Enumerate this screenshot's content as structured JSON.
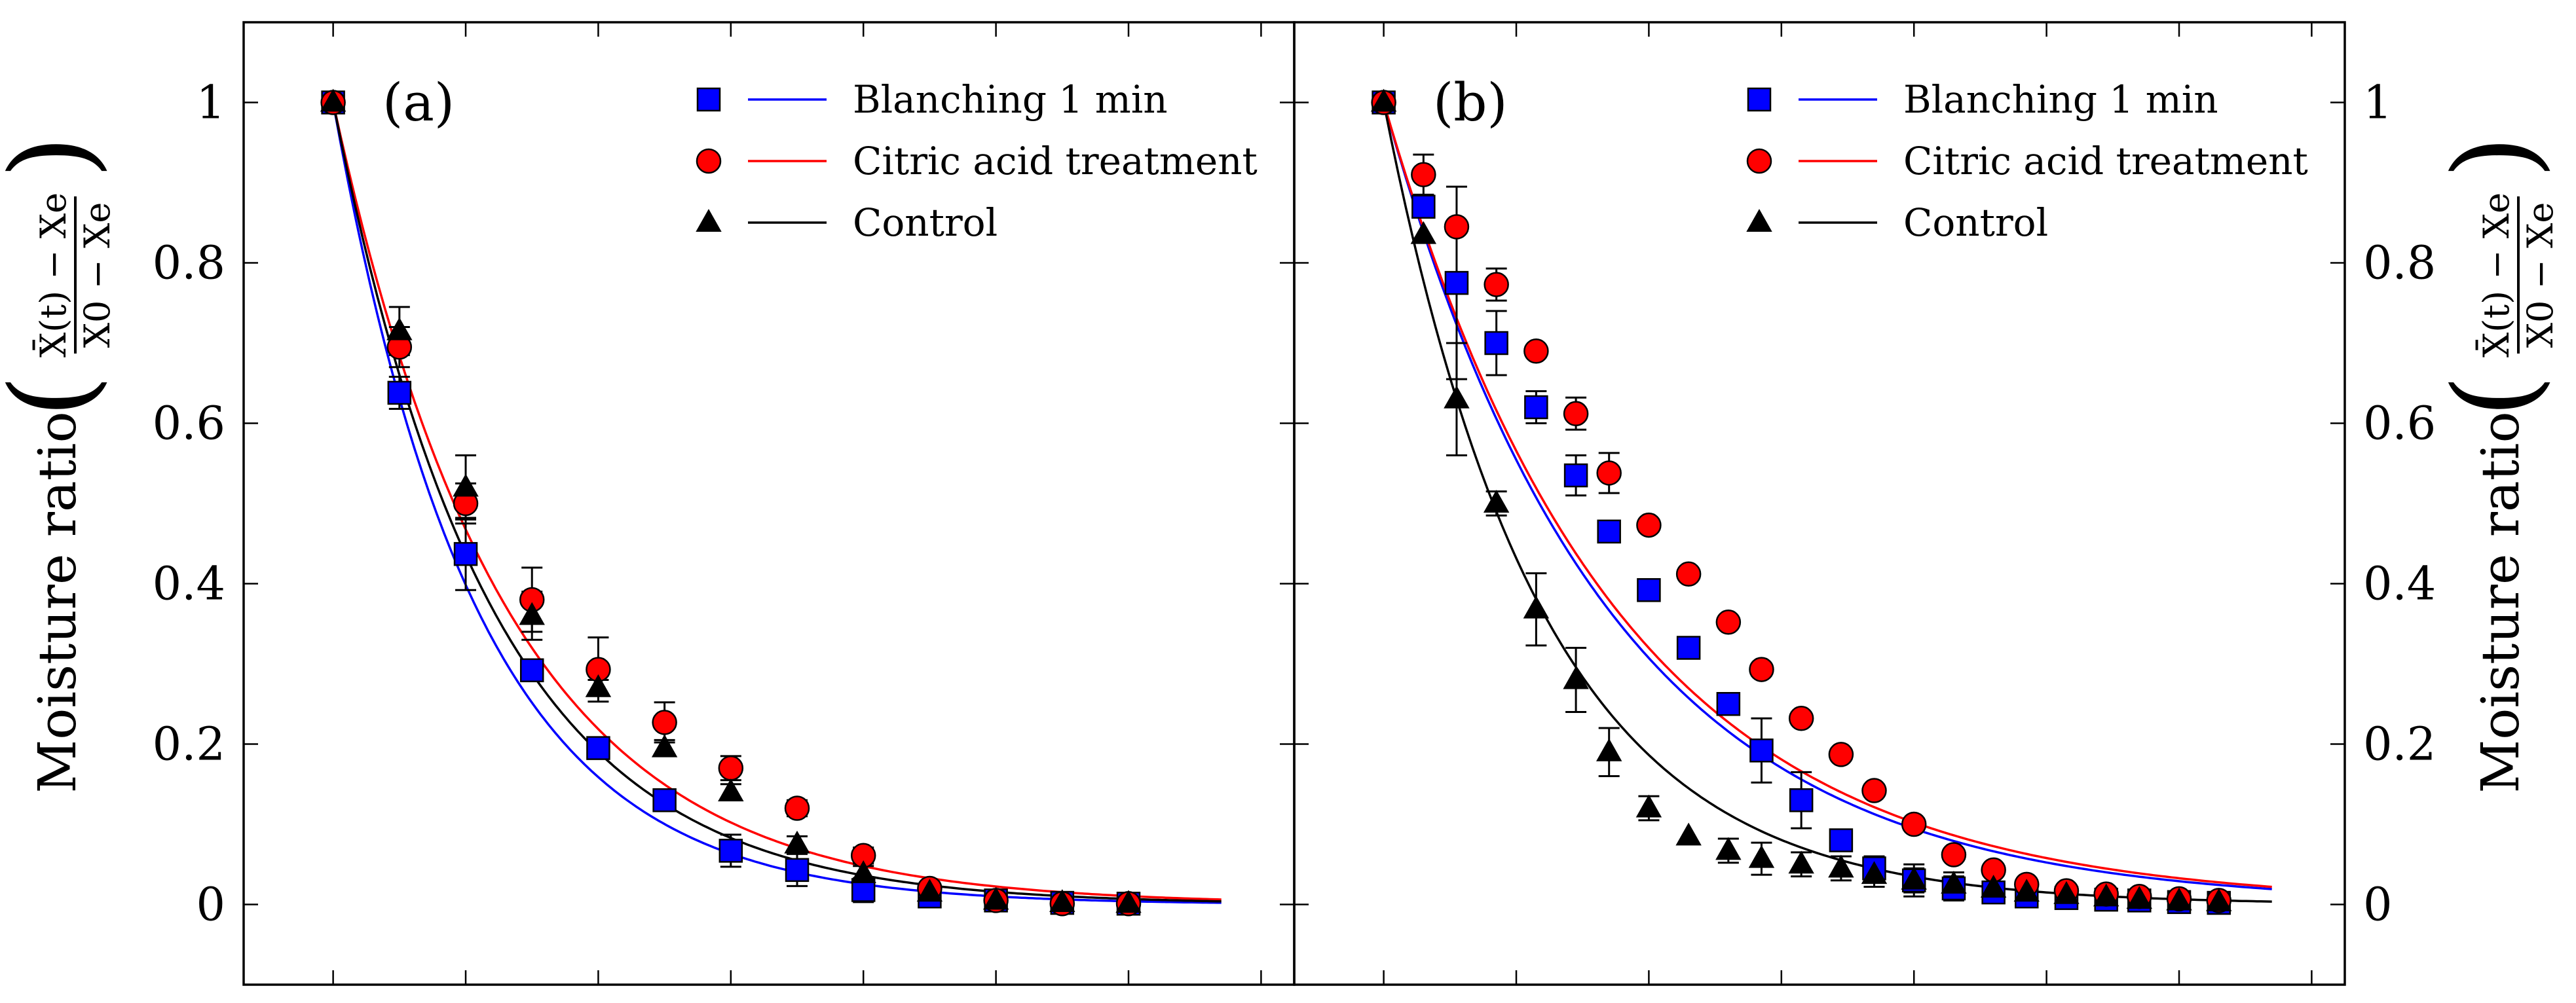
{
  "ylabel_left": {
    "prefix": "Moisture ratio",
    "num": "X̄(t) − Xe",
    "den": "X0 − Xe"
  },
  "ylabel_right": {
    "prefix": "Moisture ratio",
    "num": "X̄(t) − Xe",
    "den": "X0 − Xe"
  },
  "chart_data": [
    {
      "type": "scatter",
      "panel_label": "(a)",
      "y_tick_labels": [
        "0",
        "0.2",
        "0.4",
        "0.6",
        "0.8",
        "1"
      ],
      "y_tick_values": [
        0,
        0.2,
        0.4,
        0.6,
        0.8,
        1
      ],
      "x_tick_labels": [],
      "ylim": [
        -0.1,
        1.1
      ],
      "xlim": [
        -1.35,
        14.5
      ],
      "legend_position": "top-right",
      "legend": [
        {
          "label": "Blanching 1 min",
          "marker": "square",
          "color": "#0000ff"
        },
        {
          "label": "Citric acid treatment",
          "marker": "circle",
          "color": "#ff0000"
        },
        {
          "label": "Control",
          "marker": "triangle",
          "color": "#000000"
        }
      ],
      "series": [
        {
          "name": "Blanching 1 min",
          "color": "#0000ff",
          "marker": "square",
          "k": 0.46,
          "x": [
            0,
            1,
            2,
            3,
            4,
            5,
            6,
            7,
            8,
            9,
            10,
            11,
            12
          ],
          "y": [
            1.0,
            0.638,
            0.437,
            0.292,
            0.195,
            0.13,
            0.067,
            0.043,
            0.018,
            0.01,
            0.005,
            0.002,
            0.001
          ],
          "err": [
            0,
            0.02,
            0.045,
            0.012,
            0.012,
            0.01,
            0.02,
            0.02,
            0.015,
            0.005,
            0.005,
            0.003,
            0.003
          ]
        },
        {
          "name": "Citric acid treatment",
          "color": "#ff0000",
          "marker": "circle",
          "k": 0.38,
          "x": [
            0,
            1,
            2,
            3,
            4,
            5,
            6,
            7,
            8,
            9,
            10,
            11,
            12
          ],
          "y": [
            1.0,
            0.695,
            0.5,
            0.38,
            0.293,
            0.227,
            0.17,
            0.12,
            0.061,
            0.02,
            0.005,
            0.001,
            0.001
          ],
          "err": [
            0,
            0.025,
            0.025,
            0.04,
            0.04,
            0.025,
            0.015,
            0.01,
            0.01,
            0.005,
            0.005,
            0.003,
            0.003
          ]
        },
        {
          "name": "Control",
          "color": "#000000",
          "marker": "triangle",
          "k": 0.415,
          "x": [
            0,
            1,
            2,
            3,
            4,
            5,
            6,
            7,
            8,
            9,
            10,
            11,
            12
          ],
          "y": [
            1.0,
            0.715,
            0.52,
            0.36,
            0.27,
            0.195,
            0.14,
            0.075,
            0.038,
            0.015,
            0.005,
            0.002,
            0.001
          ],
          "err": [
            0,
            0.03,
            0.04,
            0.03,
            0.01,
            0.01,
            0.01,
            0.01,
            0.01,
            0.005,
            0.005,
            0.003,
            0.003
          ]
        }
      ]
    },
    {
      "type": "scatter",
      "panel_label": "(b)",
      "y_tick_labels": [
        "0",
        "0.2",
        "0.4",
        "0.6",
        "0.8",
        "1"
      ],
      "y_tick_values": [
        0,
        0.2,
        0.4,
        0.6,
        0.8,
        1
      ],
      "x_tick_labels": [],
      "ylim": [
        -0.1,
        1.1
      ],
      "xlim": [
        -1.35,
        14.5
      ],
      "legend_position": "top-right",
      "legend": [
        {
          "label": "Blanching 1 min",
          "marker": "square",
          "color": "#0000ff"
        },
        {
          "label": "Citric acid treatment",
          "marker": "circle",
          "color": "#ff0000"
        },
        {
          "label": "Control",
          "marker": "triangle",
          "color": "#000000"
        }
      ],
      "series": [
        {
          "name": "Blanching 1 min",
          "color": "#0000ff",
          "marker": "square",
          "k": 0.295,
          "x": [
            0,
            0.6,
            1.1,
            1.7,
            2.3,
            2.9,
            3.4,
            4.0,
            4.6,
            5.2,
            5.7,
            6.3,
            6.9,
            7.4,
            8.0,
            8.6,
            9.2,
            9.7,
            10.3,
            10.9,
            11.4,
            12.0,
            12.6
          ],
          "y": [
            1.0,
            0.87,
            0.775,
            0.7,
            0.62,
            0.535,
            0.465,
            0.392,
            0.32,
            0.25,
            0.192,
            0.13,
            0.08,
            0.045,
            0.03,
            0.02,
            0.015,
            0.01,
            0.008,
            0.006,
            0.005,
            0.003,
            0.002
          ],
          "err": [
            0,
            0.0,
            0.12,
            0.04,
            0.02,
            0.025,
            0.0,
            0.0,
            0.0,
            0.0,
            0.04,
            0.035,
            0.0,
            0.015,
            0.02,
            0.015,
            0.0,
            0.0,
            0.0,
            0.0,
            0.0,
            0.0,
            0.0
          ]
        },
        {
          "name": "Citric acid treatment",
          "color": "#ff0000",
          "marker": "circle",
          "k": 0.285,
          "x": [
            0,
            0.6,
            1.1,
            1.7,
            2.3,
            2.9,
            3.4,
            4.0,
            4.6,
            5.2,
            5.7,
            6.3,
            6.9,
            7.4,
            8.0,
            8.6,
            9.2,
            9.7,
            10.3,
            10.9,
            11.4,
            12.0,
            12.6
          ],
          "y": [
            1.0,
            0.91,
            0.845,
            0.773,
            0.69,
            0.612,
            0.538,
            0.473,
            0.412,
            0.352,
            0.293,
            0.232,
            0.187,
            0.142,
            0.1,
            0.062,
            0.043,
            0.025,
            0.017,
            0.013,
            0.01,
            0.007,
            0.005
          ],
          "err": [
            0,
            0.025,
            0.0,
            0.02,
            0.0,
            0.02,
            0.025,
            0.0,
            0.0,
            0.0,
            0.0,
            0.0,
            0.0,
            0.0,
            0.0,
            0.0,
            0.0,
            0.0,
            0.0,
            0.0,
            0.0,
            0.0,
            0.0
          ]
        },
        {
          "name": "Control",
          "color": "#000000",
          "marker": "triangle",
          "k": 0.42,
          "x": [
            0,
            0.6,
            1.1,
            1.7,
            2.3,
            2.9,
            3.4,
            4.0,
            4.6,
            5.2,
            5.7,
            6.3,
            6.9,
            7.4,
            8.0,
            8.6,
            9.2,
            9.7,
            10.3,
            10.9,
            11.4,
            12.0,
            12.6
          ],
          "y": [
            1.0,
            0.835,
            0.63,
            0.5,
            0.368,
            0.28,
            0.19,
            0.12,
            0.085,
            0.067,
            0.057,
            0.05,
            0.045,
            0.037,
            0.03,
            0.025,
            0.02,
            0.015,
            0.012,
            0.009,
            0.006,
            0.004,
            0.003
          ],
          "err": [
            0,
            0.0,
            0.07,
            0.015,
            0.045,
            0.04,
            0.03,
            0.015,
            0.0,
            0.015,
            0.02,
            0.015,
            0.015,
            0.015,
            0.015,
            0.015,
            0.0,
            0.0,
            0.0,
            0.0,
            0.0,
            0.0,
            0.0
          ]
        }
      ]
    }
  ]
}
